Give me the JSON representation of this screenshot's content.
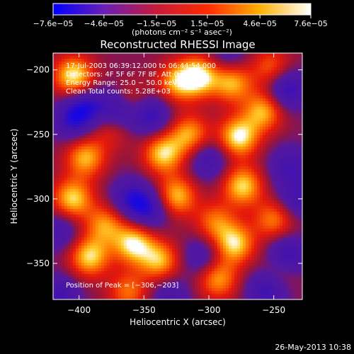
{
  "chart_data": {
    "type": "heatmap",
    "title": "Reconstructed RHESSI Image",
    "xlabel": "Heliocentric X (arcsec)",
    "ylabel": "Heliocentric Y (arcsec)",
    "xlim": [
      -420,
      -228
    ],
    "ylim": [
      -378,
      -187
    ],
    "x_ticks": [
      -400,
      -350,
      -300,
      -250
    ],
    "x_tick_labels": [
      "−400",
      "−350",
      "−300",
      "−250"
    ],
    "y_ticks": [
      -200,
      -250,
      -300,
      -350
    ],
    "y_tick_labels": [
      "−200",
      "−250",
      "−300",
      "−350"
    ],
    "colorbar": {
      "range": [
        -7.6e-05,
        7.6e-05
      ],
      "tick_values": [
        -7.6e-05,
        -4.6e-05,
        -1.5e-05,
        1.5e-05,
        4.6e-05,
        7.6e-05
      ],
      "tick_labels": [
        "−7.6e−05",
        "−4.6e−05",
        "−1.5e−05",
        "1.5e−05",
        "4.6e−05",
        "7.6e−05"
      ],
      "unit_label": "(photons cm⁻² s⁻¹ asec⁻²)",
      "colors": [
        "#0000ff",
        "#6a1fb5",
        "#c61a3a",
        "#ff2a00",
        "#ffb000",
        "#ffffff"
      ]
    },
    "annotations": {
      "time_range": "17-Jul-2003 06:39:12.000 to 06:44:54.000",
      "detectors": "Detectors: 4F 5F 6F 7F 8F, Att 0",
      "energy_range": "Energy Range: 25.0 − 50.0 keV",
      "method_counts": "Clean    Total counts: 5.28E+03",
      "peak": "Position of Peak = [−306,−203]"
    },
    "footer_timestamp": "26-May-2013 10:38",
    "blobs": [
      {
        "x": -404,
        "y": -205,
        "v": 1.0
      },
      {
        "x": -395,
        "y": -268,
        "v": 0.8
      },
      {
        "x": -405,
        "y": -300,
        "v": 0.9
      },
      {
        "x": -380,
        "y": -320,
        "v": 0.7
      },
      {
        "x": -392,
        "y": -345,
        "v": 0.9
      },
      {
        "x": -358,
        "y": -335,
        "v": 0.95
      },
      {
        "x": -338,
        "y": -348,
        "v": 0.8
      },
      {
        "x": -325,
        "y": -298,
        "v": 0.85
      },
      {
        "x": -335,
        "y": -265,
        "v": 0.9
      },
      {
        "x": -315,
        "y": -250,
        "v": 0.75
      },
      {
        "x": -308,
        "y": -205,
        "v": 1.0
      },
      {
        "x": -325,
        "y": -210,
        "v": 0.7
      },
      {
        "x": -282,
        "y": -210,
        "v": 0.8
      },
      {
        "x": -277,
        "y": -252,
        "v": 1.0
      },
      {
        "x": -258,
        "y": -232,
        "v": 0.8
      },
      {
        "x": -274,
        "y": -290,
        "v": 0.9
      },
      {
        "x": -280,
        "y": -335,
        "v": 0.9
      },
      {
        "x": -293,
        "y": -362,
        "v": 0.75
      },
      {
        "x": -250,
        "y": -316,
        "v": 0.65
      },
      {
        "x": -245,
        "y": -355,
        "v": 0.5
      },
      {
        "x": -360,
        "y": -225,
        "v": 0.5
      },
      {
        "x": -295,
        "y": -318,
        "v": 0.6
      },
      {
        "x": -362,
        "y": -372,
        "v": 0.6
      },
      {
        "x": -252,
        "y": -198,
        "v": 0.55
      },
      {
        "x": -375,
        "y": -245,
        "v": 0.45
      },
      {
        "x": -370,
        "y": -232,
        "v": -0.8
      },
      {
        "x": -345,
        "y": -235,
        "v": -0.7
      },
      {
        "x": -395,
        "y": -228,
        "v": -0.6
      },
      {
        "x": -405,
        "y": -240,
        "v": -0.55
      },
      {
        "x": -240,
        "y": -215,
        "v": -0.7
      },
      {
        "x": -238,
        "y": -275,
        "v": -0.5
      },
      {
        "x": -300,
        "y": -270,
        "v": -0.5
      },
      {
        "x": -360,
        "y": -300,
        "v": -0.6
      },
      {
        "x": -345,
        "y": -308,
        "v": -0.6
      },
      {
        "x": -305,
        "y": -345,
        "v": -0.45
      },
      {
        "x": -240,
        "y": -345,
        "v": -0.8
      },
      {
        "x": -255,
        "y": -370,
        "v": -0.65
      },
      {
        "x": -415,
        "y": -375,
        "v": -0.55
      },
      {
        "x": -330,
        "y": -375,
        "v": -0.4
      },
      {
        "x": -415,
        "y": -325,
        "v": -0.45
      },
      {
        "x": -232,
        "y": -300,
        "v": -0.5
      },
      {
        "x": -285,
        "y": -190,
        "v": -0.35
      }
    ]
  }
}
